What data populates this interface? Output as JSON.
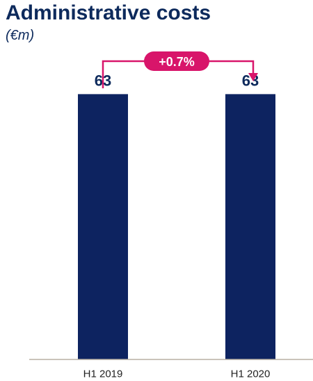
{
  "chart_data": {
    "type": "bar",
    "title": "Administrative costs",
    "subtitle": "(€m)",
    "categories": [
      "H1 2019",
      "H1 2020"
    ],
    "values": [
      63,
      63
    ],
    "data_labels": [
      "63",
      "63"
    ],
    "ylim": [
      0,
      70
    ],
    "grid": false,
    "legend": "none",
    "change_annotation": {
      "label": "+0.7%",
      "from": "H1 2019",
      "to": "H1 2020"
    },
    "colors": {
      "bar": "#0d2360",
      "annotation": "#d8156a",
      "baseline": "#b8b0a4",
      "text": "#0d2a5c"
    }
  }
}
